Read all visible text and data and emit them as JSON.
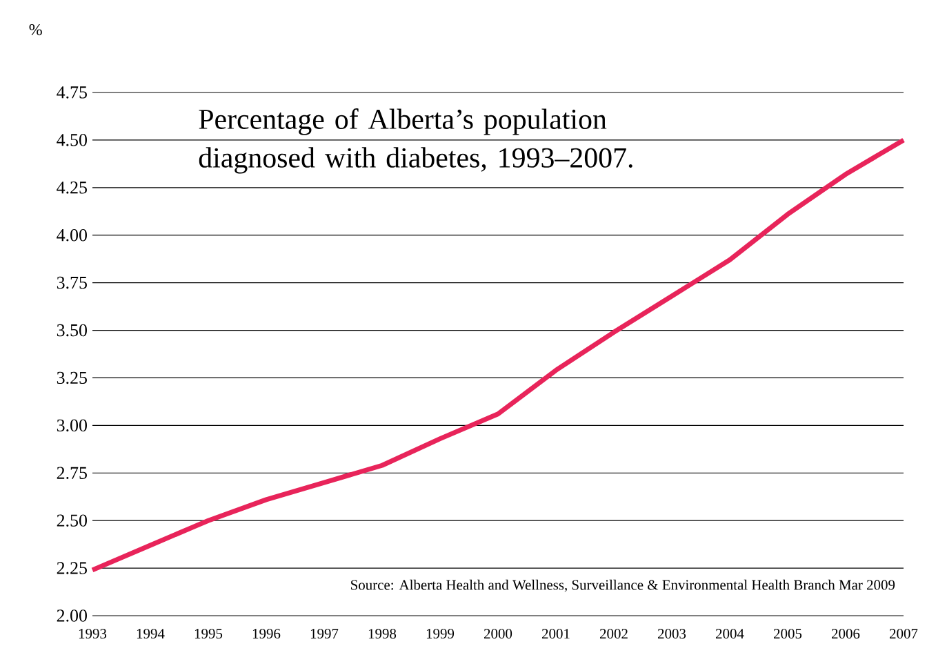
{
  "chart_data": {
    "type": "line",
    "title": "Percentage of Alberta’s population diagnosed with diabetes, 1993–2007.",
    "ylabel": "%",
    "categories": [
      "1993",
      "1994",
      "1995",
      "1996",
      "1997",
      "1998",
      "1999",
      "2000",
      "2001",
      "2002",
      "2003",
      "2004",
      "2005",
      "2006",
      "2007"
    ],
    "series": [
      {
        "color": "#e8245a",
        "values": [
          2.24,
          2.37,
          2.5,
          2.61,
          2.7,
          2.79,
          2.93,
          3.06,
          3.29,
          3.49,
          3.68,
          3.87,
          4.11,
          4.32,
          4.5
        ]
      }
    ],
    "ylim": [
      2.0,
      4.75
    ],
    "yticks": [
      {
        "value": 2.0,
        "label": "2.00"
      },
      {
        "value": 2.25,
        "label": "2.25"
      },
      {
        "value": 2.5,
        "label": "2.50"
      },
      {
        "value": 2.75,
        "label": "2.75"
      },
      {
        "value": 3.0,
        "label": "3.00"
      },
      {
        "value": 3.25,
        "label": "3.25"
      },
      {
        "value": 3.5,
        "label": "3.50"
      },
      {
        "value": 3.75,
        "label": "3.75"
      },
      {
        "value": 4.0,
        "label": "4.00"
      },
      {
        "value": 4.25,
        "label": "4.25"
      },
      {
        "value": 4.5,
        "label": "4.50"
      },
      {
        "value": 4.75,
        "label": "4.75"
      }
    ],
    "grid": "y",
    "marker": "none",
    "line_style": "solid",
    "annotations": [
      "Source: Alberta Health and Wellness, Surveillance & Environmental Health Branch Mar 2009"
    ]
  }
}
